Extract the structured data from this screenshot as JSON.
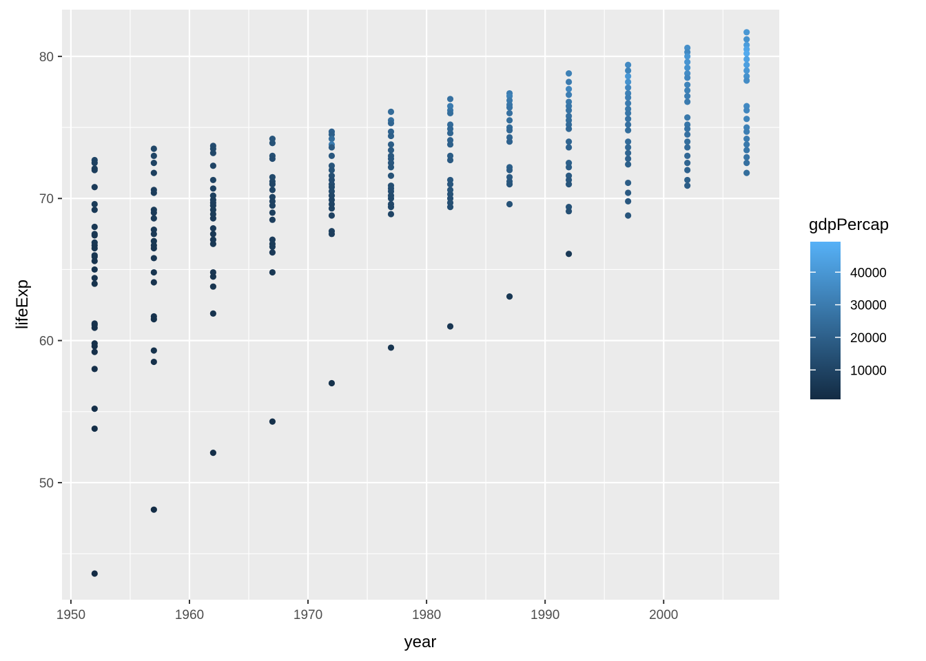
{
  "chart_data": {
    "type": "scatter",
    "title": "",
    "xlabel": "year",
    "ylabel": "lifeExp",
    "xlim": [
      1949.25,
      2009.75
    ],
    "ylim": [
      41.76,
      83.29
    ],
    "x_ticks": [
      1950,
      1960,
      1970,
      1980,
      1990,
      2000
    ],
    "y_ticks": [
      50,
      60,
      70,
      80
    ],
    "grid": true,
    "panel_background": "#EBEBEB",
    "grid_color": "#FFFFFF",
    "legend": {
      "title": "gdpPercap",
      "placement": "right",
      "type": "colorbar",
      "ticks": [
        10000,
        20000,
        30000,
        40000
      ],
      "range": [
        974,
        49357
      ],
      "low_color": "#132B43",
      "high_color": "#56B1F7"
    },
    "series": [
      {
        "x": 1952,
        "points": [
          [
            72.7,
            10000
          ],
          [
            72.5,
            9000
          ],
          [
            72.1,
            8000
          ],
          [
            72.0,
            7500
          ],
          [
            70.8,
            6500
          ],
          [
            69.6,
            7000
          ],
          [
            69.2,
            6000
          ],
          [
            68.0,
            5500
          ],
          [
            67.5,
            6000
          ],
          [
            67.4,
            5000
          ],
          [
            66.9,
            5500
          ],
          [
            66.7,
            5000
          ],
          [
            66.5,
            4500
          ],
          [
            66.0,
            5000
          ],
          [
            65.9,
            4500
          ],
          [
            65.6,
            4000
          ],
          [
            65.0,
            4200
          ],
          [
            64.4,
            3800
          ],
          [
            64.0,
            3500
          ],
          [
            61.2,
            4000
          ],
          [
            61.1,
            3500
          ],
          [
            60.9,
            3200
          ],
          [
            59.8,
            3000
          ],
          [
            59.6,
            2800
          ],
          [
            59.2,
            2900
          ],
          [
            58.0,
            2500
          ],
          [
            55.2,
            2500
          ],
          [
            53.8,
            2000
          ],
          [
            43.6,
            1500
          ]
        ]
      },
      {
        "x": 1957,
        "points": [
          [
            73.5,
            11000
          ],
          [
            73.0,
            10000
          ],
          [
            72.5,
            9500
          ],
          [
            71.8,
            8500
          ],
          [
            70.6,
            8000
          ],
          [
            70.4,
            7500
          ],
          [
            69.2,
            7000
          ],
          [
            69.0,
            6500
          ],
          [
            68.6,
            6500
          ],
          [
            67.8,
            6000
          ],
          [
            67.5,
            6000
          ],
          [
            67.0,
            5500
          ],
          [
            66.7,
            5500
          ],
          [
            66.5,
            5000
          ],
          [
            65.8,
            5000
          ],
          [
            64.8,
            4500
          ],
          [
            64.1,
            4000
          ],
          [
            61.7,
            4000
          ],
          [
            61.5,
            3500
          ],
          [
            59.3,
            3500
          ],
          [
            58.5,
            3000
          ],
          [
            48.1,
            1800
          ]
        ]
      },
      {
        "x": 1962,
        "points": [
          [
            73.7,
            13000
          ],
          [
            73.5,
            12000
          ],
          [
            73.2,
            11000
          ],
          [
            72.3,
            10000
          ],
          [
            71.3,
            9500
          ],
          [
            70.7,
            9000
          ],
          [
            70.2,
            8500
          ],
          [
            69.9,
            8000
          ],
          [
            69.7,
            8000
          ],
          [
            69.5,
            7500
          ],
          [
            69.2,
            7000
          ],
          [
            68.9,
            7000
          ],
          [
            68.6,
            6500
          ],
          [
            67.9,
            6500
          ],
          [
            67.5,
            6000
          ],
          [
            67.1,
            6000
          ],
          [
            66.8,
            5500
          ],
          [
            64.8,
            5000
          ],
          [
            64.5,
            4500
          ],
          [
            63.8,
            4500
          ],
          [
            61.9,
            4000
          ],
          [
            52.1,
            2500
          ]
        ]
      },
      {
        "x": 1967,
        "points": [
          [
            74.2,
            16000
          ],
          [
            73.9,
            15000
          ],
          [
            73.0,
            14000
          ],
          [
            72.8,
            13000
          ],
          [
            71.5,
            12000
          ],
          [
            71.2,
            11000
          ],
          [
            71.0,
            10500
          ],
          [
            70.6,
            10000
          ],
          [
            70.1,
            9500
          ],
          [
            69.8,
            9000
          ],
          [
            69.5,
            9000
          ],
          [
            69.0,
            8500
          ],
          [
            68.5,
            8000
          ],
          [
            67.1,
            7500
          ],
          [
            66.8,
            7000
          ],
          [
            66.6,
            7000
          ],
          [
            66.2,
            6500
          ],
          [
            64.8,
            5500
          ],
          [
            54.3,
            3000
          ]
        ]
      },
      {
        "x": 1972,
        "points": [
          [
            74.7,
            21000
          ],
          [
            74.5,
            20000
          ],
          [
            74.2,
            25000
          ],
          [
            73.8,
            30000
          ],
          [
            73.6,
            18000
          ],
          [
            73.0,
            17000
          ],
          [
            72.3,
            16000
          ],
          [
            72.0,
            15000
          ],
          [
            71.6,
            14000
          ],
          [
            71.3,
            13000
          ],
          [
            71.0,
            13000
          ],
          [
            70.8,
            12000
          ],
          [
            70.5,
            12000
          ],
          [
            70.2,
            11000
          ],
          [
            69.9,
            10500
          ],
          [
            69.6,
            10000
          ],
          [
            69.3,
            9500
          ],
          [
            68.8,
            9000
          ],
          [
            67.7,
            8500
          ],
          [
            67.5,
            8000
          ],
          [
            57.0,
            3500
          ]
        ]
      },
      {
        "x": 1977,
        "points": [
          [
            76.1,
            24000
          ],
          [
            75.5,
            26000
          ],
          [
            75.3,
            22000
          ],
          [
            74.7,
            21000
          ],
          [
            74.4,
            20000
          ],
          [
            73.8,
            19000
          ],
          [
            73.4,
            18000
          ],
          [
            73.0,
            17500
          ],
          [
            72.8,
            17000
          ],
          [
            72.5,
            16500
          ],
          [
            72.2,
            16000
          ],
          [
            71.6,
            15000
          ],
          [
            70.9,
            14000
          ],
          [
            70.7,
            13500
          ],
          [
            70.5,
            13000
          ],
          [
            70.2,
            12500
          ],
          [
            70.0,
            12000
          ],
          [
            69.6,
            11500
          ],
          [
            69.4,
            11000
          ],
          [
            68.9,
            10000
          ],
          [
            59.5,
            4500
          ]
        ]
      },
      {
        "x": 1982,
        "points": [
          [
            77.0,
            26000
          ],
          [
            76.5,
            30000
          ],
          [
            76.2,
            28000
          ],
          [
            76.0,
            25000
          ],
          [
            75.2,
            24000
          ],
          [
            74.9,
            23000
          ],
          [
            74.6,
            22000
          ],
          [
            74.1,
            21000
          ],
          [
            73.8,
            20000
          ],
          [
            73.0,
            19000
          ],
          [
            72.7,
            18000
          ],
          [
            71.3,
            17000
          ],
          [
            71.0,
            16500
          ],
          [
            70.6,
            16000
          ],
          [
            70.3,
            15000
          ],
          [
            70.0,
            14500
          ],
          [
            69.7,
            14000
          ],
          [
            69.4,
            13500
          ],
          [
            61.0,
            5000
          ]
        ]
      },
      {
        "x": 1987,
        "points": [
          [
            77.4,
            30000
          ],
          [
            77.2,
            32000
          ],
          [
            76.9,
            29000
          ],
          [
            76.6,
            28000
          ],
          [
            76.4,
            27000
          ],
          [
            76.0,
            26000
          ],
          [
            75.5,
            25000
          ],
          [
            75.0,
            24000
          ],
          [
            74.8,
            23000
          ],
          [
            74.3,
            22000
          ],
          [
            74.0,
            21000
          ],
          [
            72.2,
            20000
          ],
          [
            72.0,
            19000
          ],
          [
            71.5,
            18000
          ],
          [
            71.2,
            17000
          ],
          [
            71.0,
            16000
          ],
          [
            69.6,
            15000
          ],
          [
            63.1,
            5500
          ]
        ]
      },
      {
        "x": 1992,
        "points": [
          [
            78.8,
            32000
          ],
          [
            78.2,
            30000
          ],
          [
            77.7,
            34000
          ],
          [
            77.3,
            31000
          ],
          [
            76.8,
            29000
          ],
          [
            76.5,
            28000
          ],
          [
            76.2,
            27000
          ],
          [
            75.8,
            26000
          ],
          [
            75.5,
            25000
          ],
          [
            75.2,
            24000
          ],
          [
            74.9,
            23000
          ],
          [
            74.0,
            22000
          ],
          [
            73.6,
            21000
          ],
          [
            72.5,
            20000
          ],
          [
            72.2,
            19000
          ],
          [
            71.6,
            18000
          ],
          [
            71.3,
            17000
          ],
          [
            71.0,
            16000
          ],
          [
            69.4,
            15000
          ],
          [
            69.1,
            14000
          ],
          [
            66.1,
            6000
          ]
        ]
      },
      {
        "x": 1997,
        "points": [
          [
            79.4,
            35000
          ],
          [
            79.0,
            33000
          ],
          [
            78.6,
            40000
          ],
          [
            78.2,
            38000
          ],
          [
            77.8,
            34000
          ],
          [
            77.4,
            32000
          ],
          [
            77.1,
            31000
          ],
          [
            76.7,
            30000
          ],
          [
            76.3,
            29000
          ],
          [
            76.0,
            28000
          ],
          [
            75.6,
            27000
          ],
          [
            75.2,
            26000
          ],
          [
            74.8,
            25000
          ],
          [
            74.0,
            24000
          ],
          [
            73.6,
            23000
          ],
          [
            73.2,
            22000
          ],
          [
            72.8,
            21000
          ],
          [
            72.4,
            20000
          ],
          [
            71.1,
            19000
          ],
          [
            70.4,
            18000
          ],
          [
            69.8,
            17000
          ],
          [
            68.8,
            16000
          ]
        ]
      },
      {
        "x": 2002,
        "points": [
          [
            80.6,
            37000
          ],
          [
            80.3,
            35000
          ],
          [
            80.0,
            40000
          ],
          [
            79.6,
            39000
          ],
          [
            79.2,
            38000
          ],
          [
            78.8,
            36000
          ],
          [
            78.5,
            34000
          ],
          [
            78.0,
            33000
          ],
          [
            77.6,
            32000
          ],
          [
            77.2,
            31000
          ],
          [
            76.8,
            30000
          ],
          [
            75.7,
            29000
          ],
          [
            75.2,
            28000
          ],
          [
            74.9,
            27000
          ],
          [
            74.5,
            26000
          ],
          [
            74.0,
            25000
          ],
          [
            73.6,
            24000
          ],
          [
            73.0,
            23000
          ],
          [
            72.5,
            22000
          ],
          [
            72.0,
            21000
          ],
          [
            71.3,
            20000
          ],
          [
            70.9,
            19000
          ]
        ]
      },
      {
        "x": 2007,
        "points": [
          [
            81.7,
            40000
          ],
          [
            81.2,
            38000
          ],
          [
            80.8,
            42000
          ],
          [
            80.5,
            45000
          ],
          [
            80.2,
            47000
          ],
          [
            79.8,
            44000
          ],
          [
            79.4,
            43000
          ],
          [
            79.0,
            40000
          ],
          [
            78.6,
            38000
          ],
          [
            78.3,
            36000
          ],
          [
            76.5,
            35000
          ],
          [
            76.2,
            34000
          ],
          [
            75.6,
            33000
          ],
          [
            75.0,
            32000
          ],
          [
            74.7,
            31000
          ],
          [
            74.2,
            30000
          ],
          [
            73.8,
            29000
          ],
          [
            73.4,
            28000
          ],
          [
            72.9,
            27000
          ],
          [
            72.5,
            26000
          ],
          [
            71.8,
            25000
          ]
        ]
      }
    ]
  }
}
